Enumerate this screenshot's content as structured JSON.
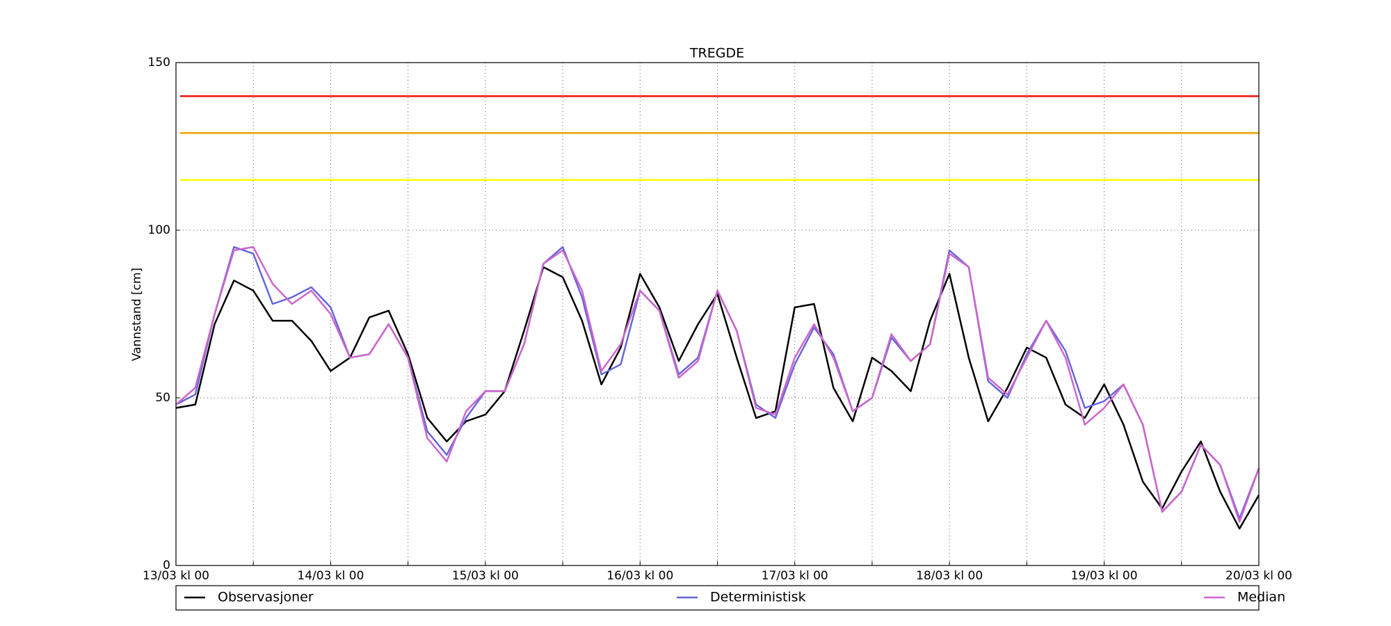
{
  "chart_data": {
    "type": "line",
    "title": "TREGDE",
    "y_label": "Vannstand [cm]",
    "x": [
      0,
      3,
      6,
      9,
      12,
      15,
      18,
      21,
      24,
      27,
      30,
      33,
      36,
      39,
      42,
      45,
      48,
      51,
      54,
      57,
      60,
      63,
      66,
      69,
      72,
      75,
      78,
      81,
      84,
      87,
      90,
      93,
      96,
      99,
      102,
      105,
      108,
      111,
      114,
      117,
      120,
      123,
      126,
      129,
      132,
      135,
      138,
      141,
      144,
      147,
      150,
      153,
      156,
      159,
      162,
      165,
      168
    ],
    "series": [
      {
        "name": "Observasjoner",
        "color": "#000000",
        "values": [
          47,
          48,
          72,
          85,
          82,
          73,
          73,
          67,
          58,
          62,
          74,
          76,
          63,
          44,
          37,
          43,
          45,
          52,
          70,
          89,
          86,
          73,
          54,
          65,
          87,
          77,
          61,
          72,
          81,
          62,
          44,
          46,
          77,
          78,
          53,
          43,
          62,
          58,
          52,
          73,
          87,
          62,
          43,
          53,
          65,
          62,
          48,
          44,
          54,
          42,
          25,
          17,
          28,
          37,
          22,
          11,
          21
        ]
      },
      {
        "name": "Deterministisk",
        "color": "#6666dd",
        "values": [
          48,
          51,
          75,
          95,
          93,
          78,
          80,
          83,
          77,
          62,
          63,
          72,
          62,
          40,
          33,
          44,
          52,
          52,
          66,
          90,
          95,
          80,
          57,
          60,
          82,
          76,
          57,
          62,
          82,
          70,
          48,
          44,
          60,
          71,
          63,
          46,
          50,
          68,
          61,
          66,
          94,
          89,
          55,
          50,
          63,
          73,
          64,
          47,
          49,
          54,
          42,
          16,
          22,
          36,
          30,
          14,
          29
        ]
      },
      {
        "name": "Median",
        "color": "#cc66cc",
        "values": [
          48,
          53,
          75,
          94,
          95,
          84,
          78,
          82,
          75,
          62,
          63,
          72,
          62,
          38,
          31,
          46,
          52,
          52,
          66,
          90,
          94,
          82,
          58,
          66,
          82,
          76,
          56,
          61,
          82,
          70,
          47,
          45,
          62,
          72,
          62,
          46,
          50,
          69,
          61,
          66,
          93,
          89,
          56,
          51,
          62,
          73,
          62,
          42,
          47,
          54,
          42,
          16,
          22,
          36,
          30,
          13,
          29
        ]
      }
    ],
    "thresholds": [
      {
        "value": 140,
        "color": "#ee1111"
      },
      {
        "value": 129,
        "color": "#f0a000"
      },
      {
        "value": 115,
        "color": "#ffff00"
      }
    ],
    "xlim": [
      0,
      168
    ],
    "xticks": [
      {
        "value": 0,
        "label": "13/03 kl 00"
      },
      {
        "value": 24,
        "label": "14/03 kl 00"
      },
      {
        "value": 48,
        "label": "15/03 kl 00"
      },
      {
        "value": 72,
        "label": "16/03 kl 00"
      },
      {
        "value": 96,
        "label": "17/03 kl 00"
      },
      {
        "value": 120,
        "label": "18/03 kl 00"
      },
      {
        "value": 144,
        "label": "19/03 kl 00"
      },
      {
        "value": 168,
        "label": "20/03 kl 00"
      }
    ],
    "xminor": [
      12,
      36,
      60,
      84,
      108,
      132,
      156
    ],
    "ylim": [
      0,
      150
    ],
    "yticks": [
      0,
      50,
      100,
      150
    ],
    "grid": true,
    "legend": "bottom"
  }
}
